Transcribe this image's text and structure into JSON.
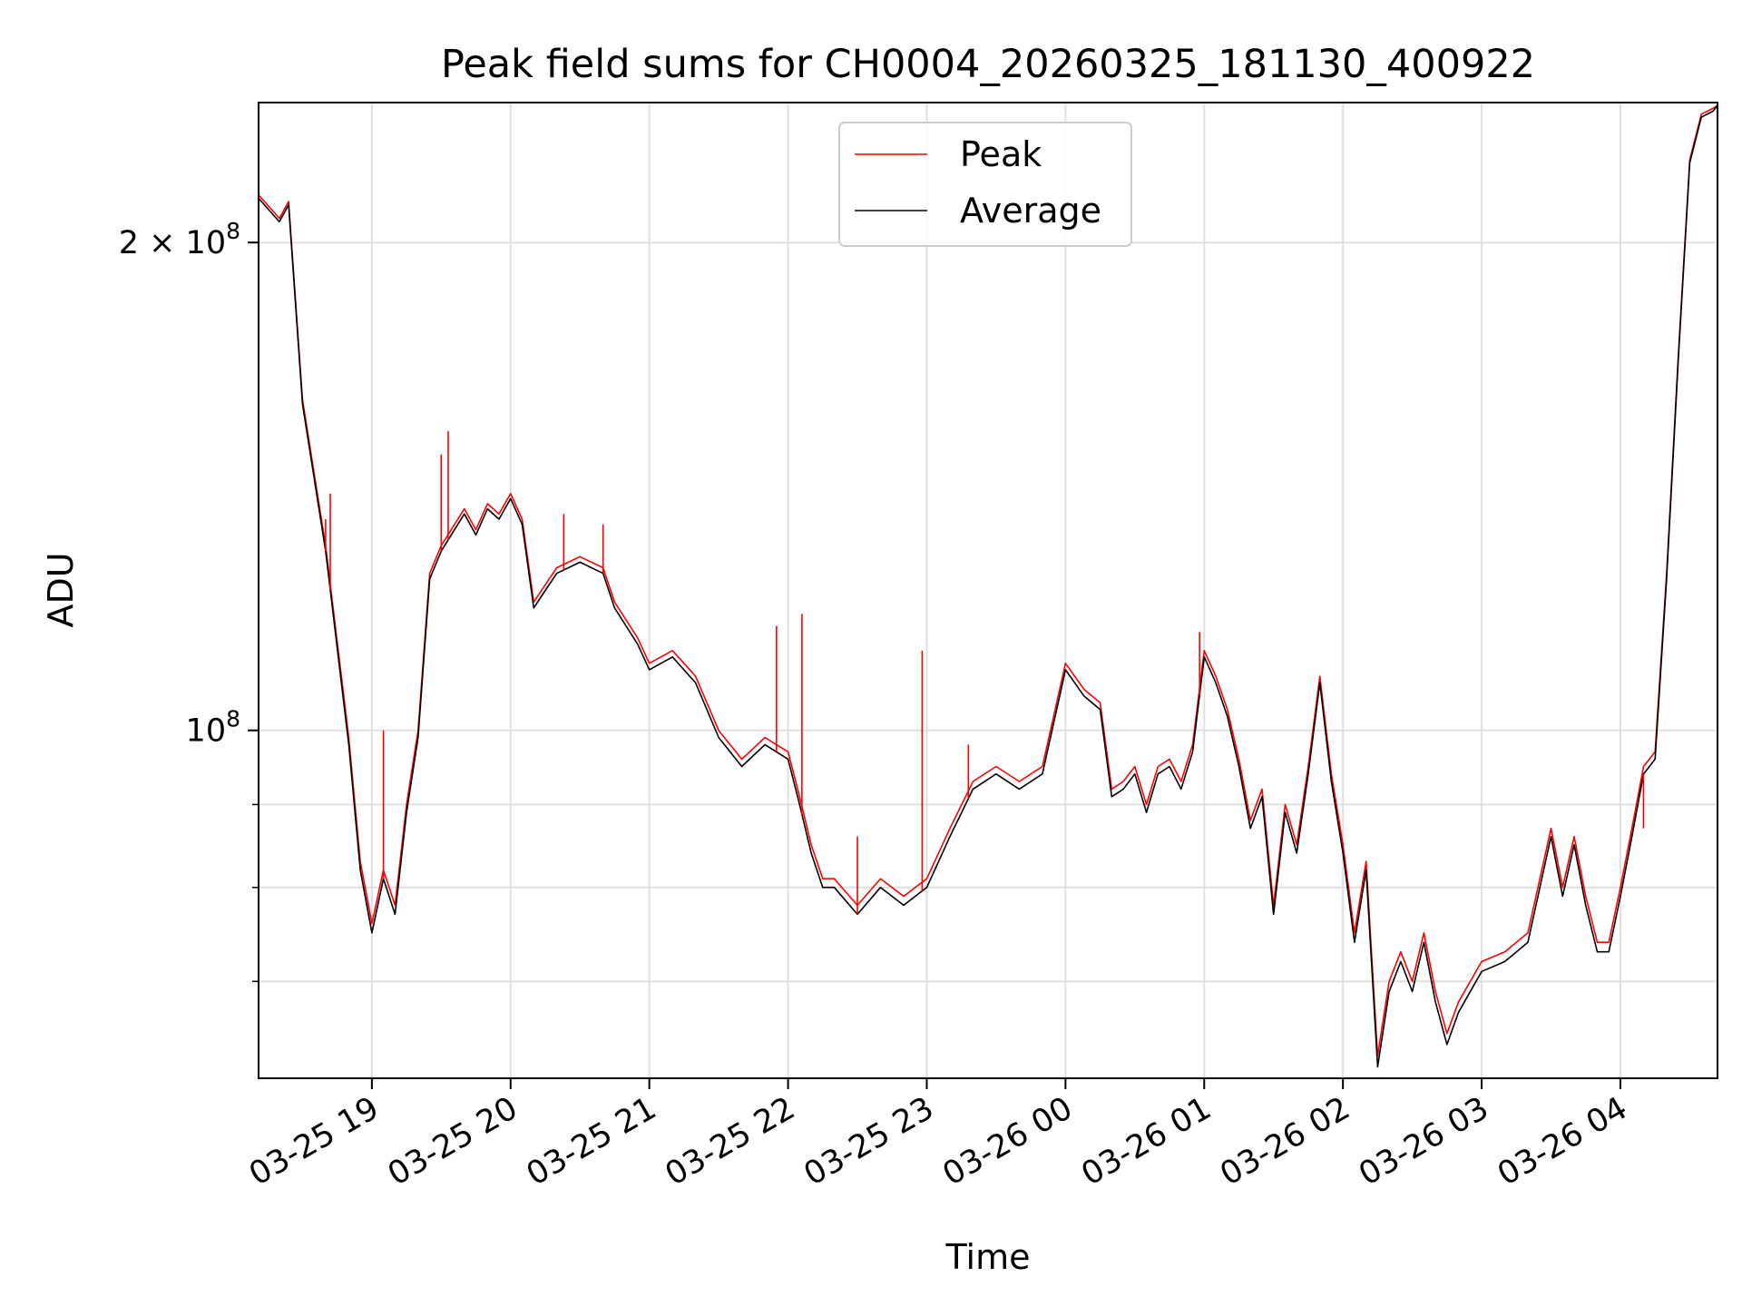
{
  "chart_data": {
    "type": "line",
    "title": "Peak field sums for CH0004_20260325_181130_400922",
    "xlabel": "Time",
    "ylabel": "ADU",
    "yscale": "log",
    "xlim": [
      "2026-03-25 18:11",
      "2026-03-26 04:42"
    ],
    "ylim": [
      61000000,
      244000000
    ],
    "grid": true,
    "legend_position": "upper center",
    "x_ticks": [
      "03-25 19",
      "03-25 20",
      "03-25 21",
      "03-25 22",
      "03-25 23",
      "03-26 00",
      "03-26 01",
      "03-26 02",
      "03-26 03",
      "03-26 04"
    ],
    "y_tick_labels": [
      {
        "value": 100000000,
        "label": "10^8",
        "base": "10",
        "exp": "8"
      },
      {
        "value": 200000000,
        "label": "2 × 10^8",
        "base": "2 × 10",
        "exp": "8"
      }
    ],
    "y_minor_ticks": [
      60000000,
      70000000,
      80000000,
      90000000
    ],
    "x": [
      "2026-03-25 18:11",
      "2026-03-25 18:20",
      "2026-03-25 18:24",
      "2026-03-25 18:30",
      "2026-03-25 18:40",
      "2026-03-25 18:50",
      "2026-03-25 18:55",
      "2026-03-25 19:00",
      "2026-03-25 19:05",
      "2026-03-25 19:10",
      "2026-03-25 19:15",
      "2026-03-25 19:20",
      "2026-03-25 19:25",
      "2026-03-25 19:30",
      "2026-03-25 19:40",
      "2026-03-25 19:45",
      "2026-03-25 19:50",
      "2026-03-25 19:55",
      "2026-03-25 20:00",
      "2026-03-25 20:05",
      "2026-03-25 20:10",
      "2026-03-25 20:15",
      "2026-03-25 20:20",
      "2026-03-25 20:30",
      "2026-03-25 20:40",
      "2026-03-25 20:45",
      "2026-03-25 20:55",
      "2026-03-25 21:00",
      "2026-03-25 21:10",
      "2026-03-25 21:20",
      "2026-03-25 21:30",
      "2026-03-25 21:40",
      "2026-03-25 21:50",
      "2026-03-25 22:00",
      "2026-03-25 22:05",
      "2026-03-25 22:10",
      "2026-03-25 22:15",
      "2026-03-25 22:20",
      "2026-03-25 22:30",
      "2026-03-25 22:40",
      "2026-03-25 22:50",
      "2026-03-25 23:00",
      "2026-03-25 23:10",
      "2026-03-25 23:20",
      "2026-03-25 23:30",
      "2026-03-25 23:40",
      "2026-03-25 23:50",
      "2026-03-26 00:00",
      "2026-03-26 00:08",
      "2026-03-26 00:15",
      "2026-03-26 00:20",
      "2026-03-26 00:25",
      "2026-03-26 00:30",
      "2026-03-26 00:35",
      "2026-03-26 00:40",
      "2026-03-26 00:45",
      "2026-03-26 00:50",
      "2026-03-26 00:55",
      "2026-03-26 01:00",
      "2026-03-26 01:05",
      "2026-03-26 01:10",
      "2026-03-26 01:15",
      "2026-03-26 01:20",
      "2026-03-26 01:25",
      "2026-03-26 01:30",
      "2026-03-26 01:35",
      "2026-03-26 01:40",
      "2026-03-26 01:45",
      "2026-03-26 01:50",
      "2026-03-26 01:55",
      "2026-03-26 02:00",
      "2026-03-26 02:05",
      "2026-03-26 02:10",
      "2026-03-26 02:15",
      "2026-03-26 02:20",
      "2026-03-26 02:25",
      "2026-03-26 02:30",
      "2026-03-26 02:35",
      "2026-03-26 02:40",
      "2026-03-26 02:45",
      "2026-03-26 02:50",
      "2026-03-26 03:00",
      "2026-03-26 03:10",
      "2026-03-26 03:20",
      "2026-03-26 03:30",
      "2026-03-26 03:35",
      "2026-03-26 03:40",
      "2026-03-26 03:45",
      "2026-03-26 03:50",
      "2026-03-26 03:55",
      "2026-03-26 04:00",
      "2026-03-26 04:05",
      "2026-03-26 04:10",
      "2026-03-26 04:15",
      "2026-03-26 04:20",
      "2026-03-26 04:25",
      "2026-03-26 04:30",
      "2026-03-26 04:35",
      "2026-03-26 04:40",
      "2026-03-26 04:42"
    ],
    "series": [
      {
        "name": "Peak",
        "color": "#ff0000",
        "values": [
          214000000,
          207000000,
          212000000,
          160000000,
          130000000,
          99000000,
          83000000,
          76000000,
          82000000,
          78000000,
          90000000,
          100000000,
          125000000,
          130000000,
          137000000,
          133000000,
          138000000,
          136000000,
          140000000,
          135000000,
          120000000,
          123000000,
          126000000,
          128000000,
          126000000,
          120000000,
          114000000,
          110000000,
          112000000,
          108000000,
          100000000,
          96000000,
          99000000,
          97000000,
          91000000,
          85000000,
          81000000,
          81000000,
          78000000,
          81000000,
          79000000,
          81000000,
          87000000,
          93000000,
          95000000,
          93000000,
          95000000,
          110000000,
          106000000,
          104000000,
          92000000,
          93000000,
          95000000,
          90000000,
          95000000,
          96000000,
          93000000,
          98000000,
          112000000,
          108000000,
          103000000,
          96000000,
          88000000,
          92000000,
          78000000,
          90000000,
          85000000,
          95000000,
          108000000,
          94000000,
          85000000,
          75000000,
          83000000,
          63000000,
          70000000,
          73000000,
          70000000,
          75000000,
          69000000,
          65000000,
          68000000,
          72000000,
          73000000,
          75000000,
          87000000,
          80000000,
          86000000,
          79000000,
          74000000,
          74000000,
          80000000,
          87000000,
          95000000,
          97000000,
          125000000,
          170000000,
          225000000,
          240000000,
          242000000,
          243000000
        ]
      },
      {
        "name": "Average",
        "color": "#000000",
        "values": [
          213000000,
          206000000,
          211000000,
          159000000,
          129000000,
          98000000,
          82000000,
          75000000,
          81000000,
          77000000,
          89000000,
          99000000,
          124000000,
          129000000,
          136000000,
          132000000,
          137000000,
          135000000,
          139000000,
          134000000,
          119000000,
          122000000,
          125000000,
          127000000,
          125000000,
          119000000,
          113000000,
          109000000,
          111000000,
          107000000,
          99000000,
          95000000,
          98000000,
          96000000,
          90000000,
          84000000,
          80000000,
          80000000,
          77000000,
          80000000,
          78000000,
          80000000,
          86000000,
          92000000,
          94000000,
          92000000,
          94000000,
          109000000,
          105000000,
          103000000,
          91000000,
          92000000,
          94000000,
          89000000,
          94000000,
          95000000,
          92000000,
          97000000,
          111000000,
          107000000,
          102000000,
          95000000,
          87000000,
          91000000,
          77000000,
          89000000,
          84000000,
          94000000,
          107000000,
          93000000,
          84000000,
          74000000,
          82000000,
          62000000,
          69000000,
          72000000,
          69000000,
          74000000,
          68000000,
          64000000,
          67000000,
          71000000,
          72000000,
          74000000,
          86000000,
          79000000,
          85000000,
          78000000,
          73000000,
          73000000,
          79000000,
          86000000,
          94000000,
          96000000,
          124000000,
          169000000,
          224000000,
          239000000,
          241000000,
          243000000
        ]
      }
    ],
    "peak_spikes": [
      {
        "x": "2026-03-25 18:40",
        "y": 135000000
      },
      {
        "x": "2026-03-25 18:42",
        "y": 140000000
      },
      {
        "x": "2026-03-25 19:05",
        "y": 100000000
      },
      {
        "x": "2026-03-25 19:30",
        "y": 148000000
      },
      {
        "x": "2026-03-25 19:33",
        "y": 153000000
      },
      {
        "x": "2026-03-25 20:23",
        "y": 136000000
      },
      {
        "x": "2026-03-25 20:40",
        "y": 134000000
      },
      {
        "x": "2026-03-25 21:55",
        "y": 116000000
      },
      {
        "x": "2026-03-25 22:06",
        "y": 118000000
      },
      {
        "x": "2026-03-25 22:30",
        "y": 86000000
      },
      {
        "x": "2026-03-25 22:58",
        "y": 112000000
      },
      {
        "x": "2026-03-25 23:18",
        "y": 98000000
      },
      {
        "x": "2026-03-26 00:58",
        "y": 115000000
      },
      {
        "x": "2026-03-26 04:10",
        "y": 87000000
      }
    ]
  }
}
